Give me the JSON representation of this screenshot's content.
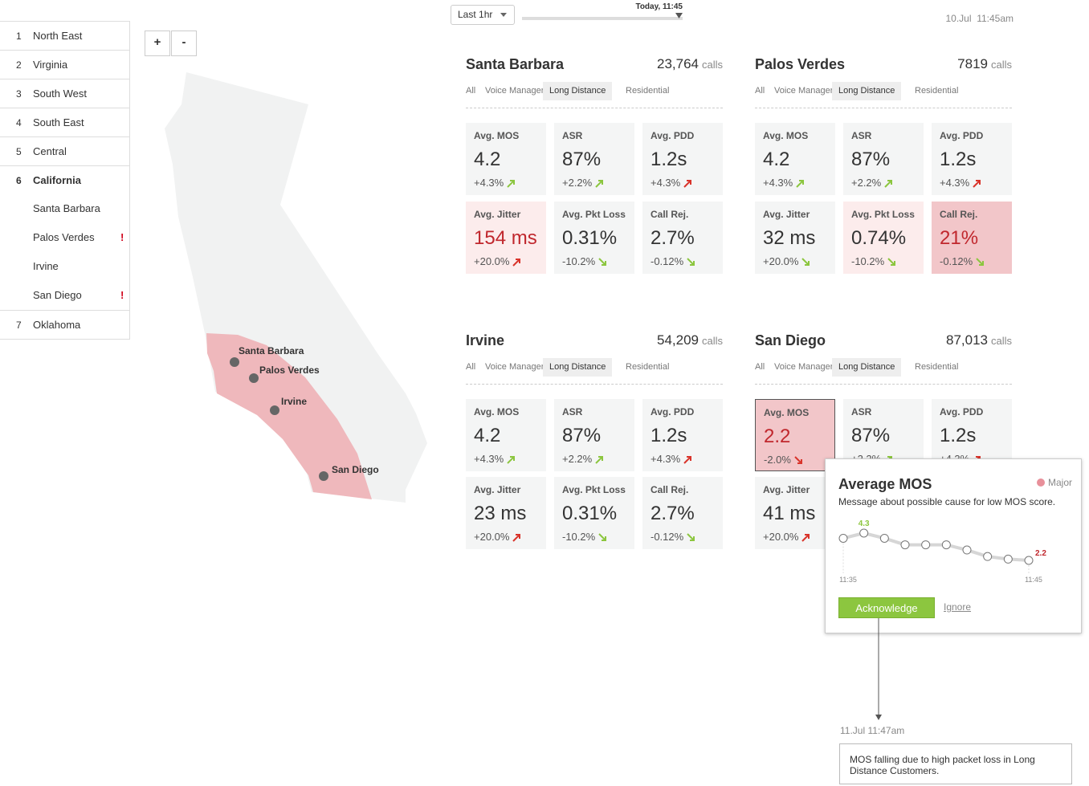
{
  "time": {
    "range": "Last 1hr",
    "slider_label": "Today, 11:45",
    "timestamp": "10.Jul  11:45am"
  },
  "sidebar": {
    "items": [
      {
        "number": "1",
        "label": "North East"
      },
      {
        "number": "2",
        "label": "Virginia"
      },
      {
        "number": "3",
        "label": "South West"
      },
      {
        "number": "4",
        "label": "South East"
      },
      {
        "number": "5",
        "label": "Central"
      },
      {
        "number": "6",
        "label": "California",
        "expanded": true,
        "children": [
          {
            "label": "Santa Barbara"
          },
          {
            "label": "Palos Verdes",
            "flag": "!"
          },
          {
            "label": "Irvine"
          },
          {
            "label": "San Diego",
            "flag": "!"
          }
        ]
      },
      {
        "number": "7",
        "label": "Oklahoma"
      }
    ]
  },
  "zoom": {
    "plus": "+",
    "minus": "-"
  },
  "map": {
    "cities": [
      "Santa Barbara",
      "Palos Verdes",
      "Irvine",
      "San Diego"
    ]
  },
  "panels": [
    {
      "name": "Santa Barbara",
      "calls": "23,764",
      "calls_unit": "calls",
      "tabs": [
        "All",
        "Voice Manager",
        "Long Distance",
        "Residential"
      ],
      "active_tab": 2,
      "metrics": [
        {
          "label": "Avg. MOS",
          "value": "4.2",
          "change": "+4.3%",
          "arrow": "up",
          "tone": "good",
          "bg": "none"
        },
        {
          "label": "ASR",
          "value": "87%",
          "change": "+2.2%",
          "arrow": "up",
          "tone": "good",
          "bg": "none"
        },
        {
          "label": "Avg. PDD",
          "value": "1.2s",
          "change": "+4.3%",
          "arrow": "up",
          "tone": "bad",
          "bg": "none"
        },
        {
          "label": "Avg. Jitter",
          "value": "154 ms",
          "change": "+20.0%",
          "arrow": "up",
          "tone": "bad",
          "bg": "light",
          "alert": true
        },
        {
          "label": "Avg. Pkt Loss",
          "value": "0.31%",
          "change": "-10.2%",
          "arrow": "down",
          "tone": "good",
          "bg": "none"
        },
        {
          "label": "Call Rej.",
          "value": "2.7%",
          "change": "-0.12%",
          "arrow": "down",
          "tone": "good",
          "bg": "none"
        }
      ]
    },
    {
      "name": "Palos Verdes",
      "calls": "7819",
      "calls_unit": "calls",
      "tabs": [
        "All",
        "Voice Manager",
        "Long Distance",
        "Residential"
      ],
      "active_tab": 2,
      "metrics": [
        {
          "label": "Avg. MOS",
          "value": "4.2",
          "change": "+4.3%",
          "arrow": "up",
          "tone": "good",
          "bg": "none"
        },
        {
          "label": "ASR",
          "value": "87%",
          "change": "+2.2%",
          "arrow": "up",
          "tone": "good",
          "bg": "none"
        },
        {
          "label": "Avg. PDD",
          "value": "1.2s",
          "change": "+4.3%",
          "arrow": "up",
          "tone": "bad",
          "bg": "none"
        },
        {
          "label": "Avg. Jitter",
          "value": "32 ms",
          "change": "+20.0%",
          "arrow": "down",
          "tone": "good",
          "bg": "none"
        },
        {
          "label": "Avg. Pkt Loss",
          "value": "0.74%",
          "change": "-10.2%",
          "arrow": "down",
          "tone": "good",
          "bg": "light"
        },
        {
          "label": "Call Rej.",
          "value": "21%",
          "change": "-0.12%",
          "arrow": "down",
          "tone": "good",
          "bg": "strong",
          "alert": true
        }
      ]
    },
    {
      "name": "Irvine",
      "calls": "54,209",
      "calls_unit": "calls",
      "tabs": [
        "All",
        "Voice Manager",
        "Long Distance",
        "Residential"
      ],
      "active_tab": 2,
      "metrics": [
        {
          "label": "Avg. MOS",
          "value": "4.2",
          "change": "+4.3%",
          "arrow": "up",
          "tone": "good",
          "bg": "none"
        },
        {
          "label": "ASR",
          "value": "87%",
          "change": "+2.2%",
          "arrow": "up",
          "tone": "good",
          "bg": "none"
        },
        {
          "label": "Avg. PDD",
          "value": "1.2s",
          "change": "+4.3%",
          "arrow": "up",
          "tone": "bad",
          "bg": "none"
        },
        {
          "label": "Avg. Jitter",
          "value": "23 ms",
          "change": "+20.0%",
          "arrow": "up",
          "tone": "bad",
          "bg": "none"
        },
        {
          "label": "Avg. Pkt Loss",
          "value": "0.31%",
          "change": "-10.2%",
          "arrow": "down",
          "tone": "good",
          "bg": "none"
        },
        {
          "label": "Call Rej.",
          "value": "2.7%",
          "change": "-0.12%",
          "arrow": "down",
          "tone": "good",
          "bg": "none"
        }
      ]
    },
    {
      "name": "San Diego",
      "calls": "87,013",
      "calls_unit": "calls",
      "tabs": [
        "All",
        "Voice Manager",
        "Long Distance",
        "Residential"
      ],
      "active_tab": 2,
      "metrics": [
        {
          "label": "Avg. MOS",
          "value": "2.2",
          "change": "-2.0%",
          "arrow": "down",
          "tone": "bad",
          "bg": "strong",
          "alert": true,
          "selected": true
        },
        {
          "label": "ASR",
          "value": "87%",
          "change": "+2.2%",
          "arrow": "up",
          "tone": "good",
          "bg": "none"
        },
        {
          "label": "Avg. PDD",
          "value": "1.2s",
          "change": "+4.3%",
          "arrow": "up",
          "tone": "bad",
          "bg": "none"
        },
        {
          "label": "Avg. Jitter",
          "value": "41 ms",
          "change": "+20.0%",
          "arrow": "up",
          "tone": "bad",
          "bg": "none"
        }
      ]
    }
  ],
  "tooltip": {
    "title": "Average MOS",
    "severity": "Major",
    "severity_color": "#e8909a",
    "message": "Message about possible cause for low MOS score.",
    "chart": {
      "type": "line",
      "x_labels": [
        "11:35",
        "11:45"
      ],
      "values": [
        3.9,
        4.3,
        3.9,
        3.4,
        3.4,
        3.4,
        3.0,
        2.5,
        2.3,
        2.2
      ],
      "value_labels": [
        null,
        "4.3",
        null,
        null,
        null,
        null,
        null,
        null,
        null,
        "2.2"
      ],
      "value_label_colors": [
        null,
        "#8cc63f",
        null,
        null,
        null,
        null,
        null,
        null,
        null,
        "#c0272d"
      ]
    },
    "acknowledge": "Acknowledge",
    "ignore": "Ignore"
  },
  "note": {
    "time": "11.Jul 11:47am",
    "text": "MOS falling due to high packet loss in Long Distance Customers."
  }
}
